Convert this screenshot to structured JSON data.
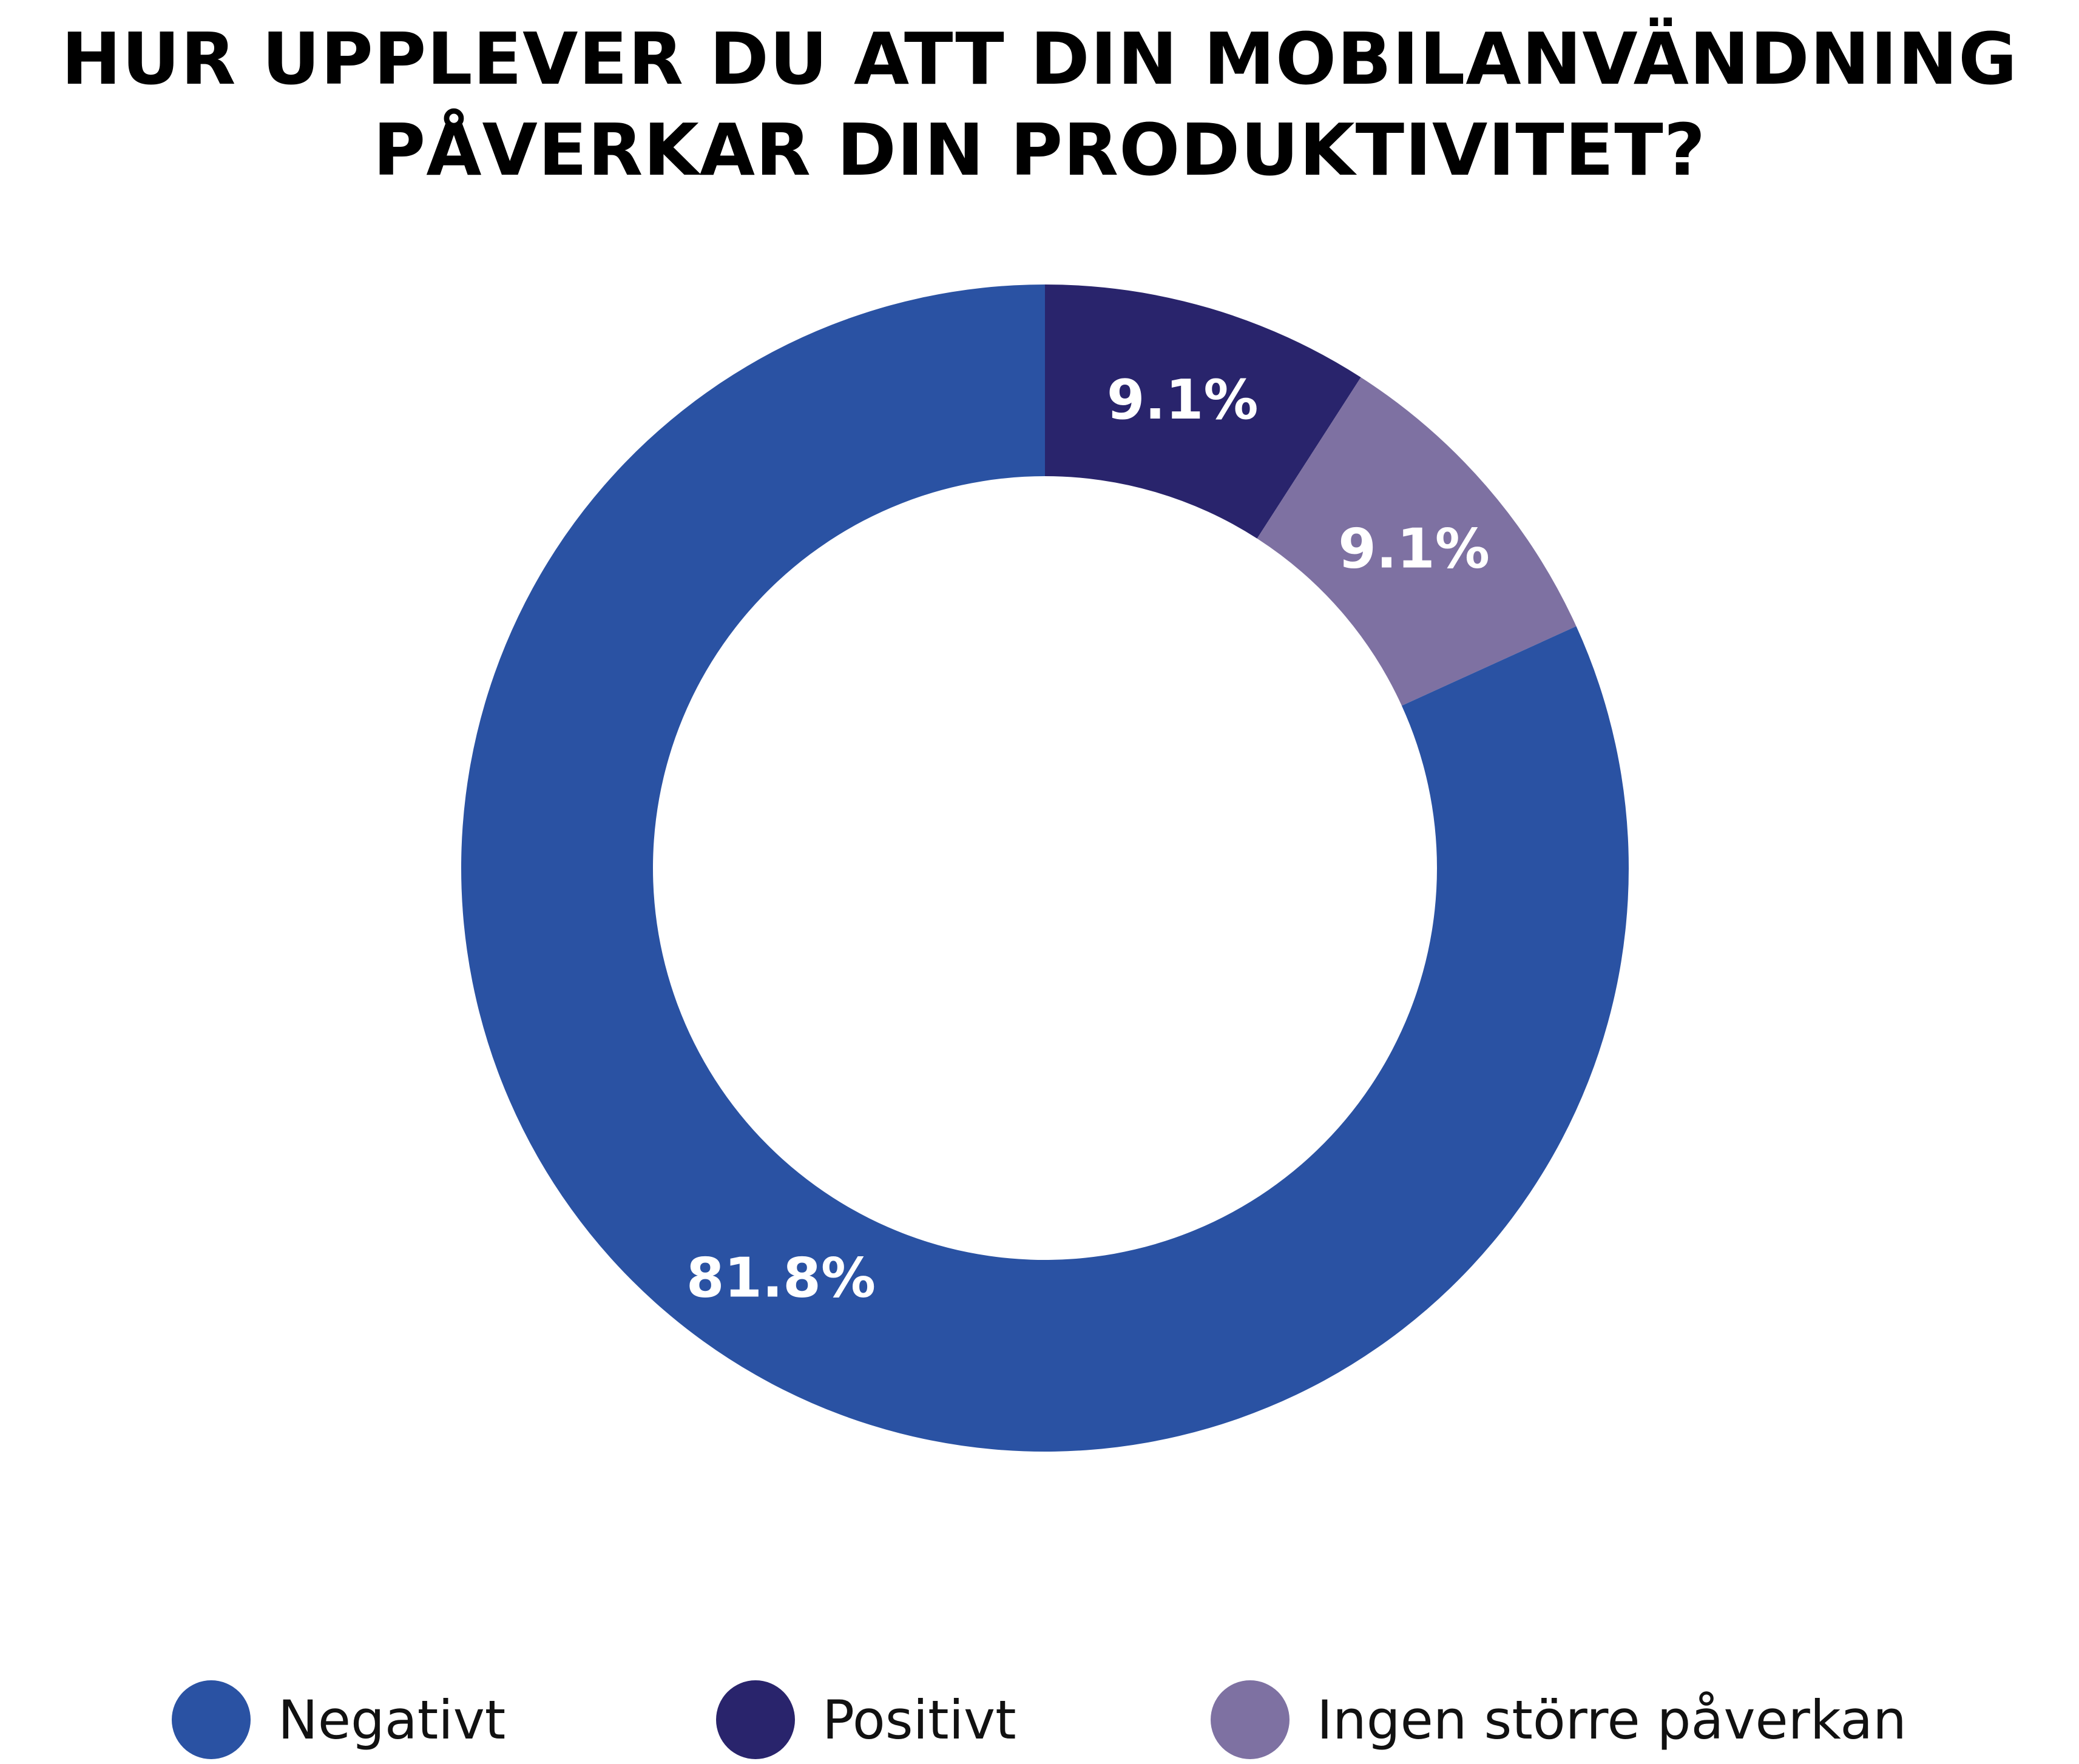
{
  "chart_data": {
    "type": "pie",
    "variant": "donut",
    "title_lines": [
      "HUR UPPLEVER DU ATT DIN MOBILANVÄNDNING",
      "PÅVERKAR DIN PRODUKTIVITET?"
    ],
    "slices": [
      {
        "name": "Negativt",
        "value": 81.8,
        "label": "81.8%",
        "color": "#2a52a3"
      },
      {
        "name": "Positivt",
        "value": 9.1,
        "label": "9.1%",
        "color": "#29246c"
      },
      {
        "name": "Ingen större påverkan",
        "value": 9.1,
        "label": "9.1%",
        "color": "#7e71a2"
      }
    ],
    "start_angle_deg": 0,
    "direction": "clockwise",
    "legend_position": "bottom",
    "label_color": "#ffffff"
  }
}
